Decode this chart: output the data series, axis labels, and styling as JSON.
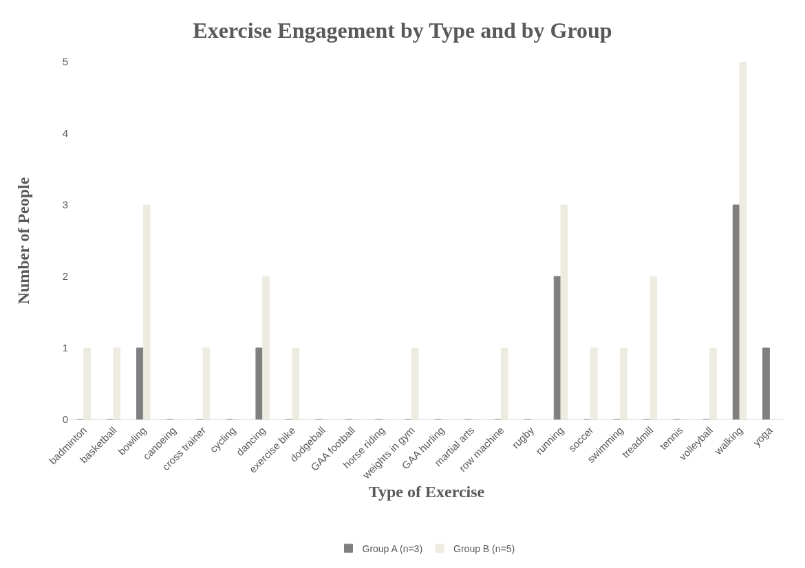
{
  "chart_data": {
    "type": "bar",
    "title": "Exercise Engagement by Type and by Group",
    "xlabel": "Type of Exercise",
    "ylabel": "Number of People",
    "categories": [
      "badminton",
      "basketball",
      "bowling",
      "canoeing",
      "cross trainer",
      "cycling",
      "dancing",
      "exercise bike",
      "dodgeball",
      "GAA football",
      "horse riding",
      "weights in gym",
      "GAA hurling",
      "martial arts",
      "row machine",
      "rugby",
      "running",
      "soccer",
      "swimming",
      "treadmill",
      "tennis",
      "volleyball",
      "walking",
      "yoga"
    ],
    "series": [
      {
        "name": "Group A (n=3)",
        "color": "#7f7f7f",
        "values": [
          0,
          0,
          1,
          0,
          0,
          0,
          1,
          0,
          0,
          0,
          0,
          0,
          0,
          0,
          0,
          0,
          2,
          0,
          0,
          0,
          0,
          0,
          3,
          1
        ]
      },
      {
        "name": "Group B (n=5)",
        "color": "#eeece1",
        "values": [
          1,
          1,
          3,
          0,
          1,
          0,
          2,
          1,
          0,
          0,
          0,
          1,
          0,
          0,
          1,
          0,
          3,
          1,
          1,
          2,
          0,
          1,
          5,
          0
        ]
      }
    ],
    "ylim": [
      0,
      5
    ],
    "yticks": [
      0,
      1,
      2,
      3,
      4,
      5
    ],
    "grid": false,
    "legend": "bottom"
  }
}
